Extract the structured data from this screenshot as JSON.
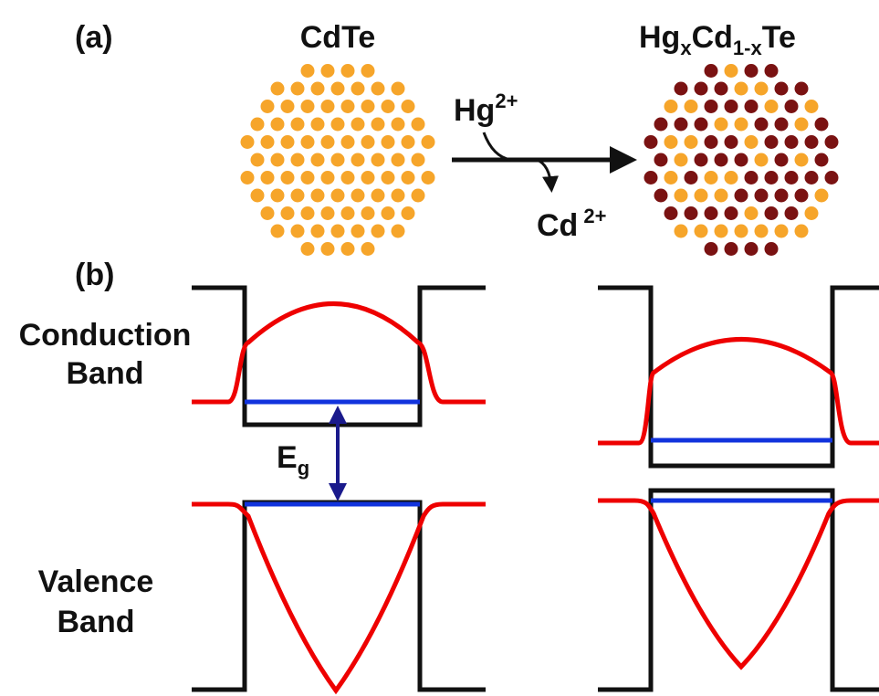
{
  "panel_a": {
    "label": "(a)",
    "left_title": "CdTe",
    "right_title": {
      "parts": [
        "Hg",
        "x",
        "Cd",
        "1-x",
        "Te"
      ]
    },
    "incoming": {
      "base": "Hg",
      "charge": "2+"
    },
    "outgoing": {
      "base": "Cd",
      "charge": "2+"
    }
  },
  "panel_b": {
    "label": "(b)",
    "conduction_label": [
      "Conduction",
      "Band"
    ],
    "valence_label": [
      "Valence",
      "Band"
    ],
    "gap_label": {
      "base": "E",
      "sub": "g"
    }
  }
}
